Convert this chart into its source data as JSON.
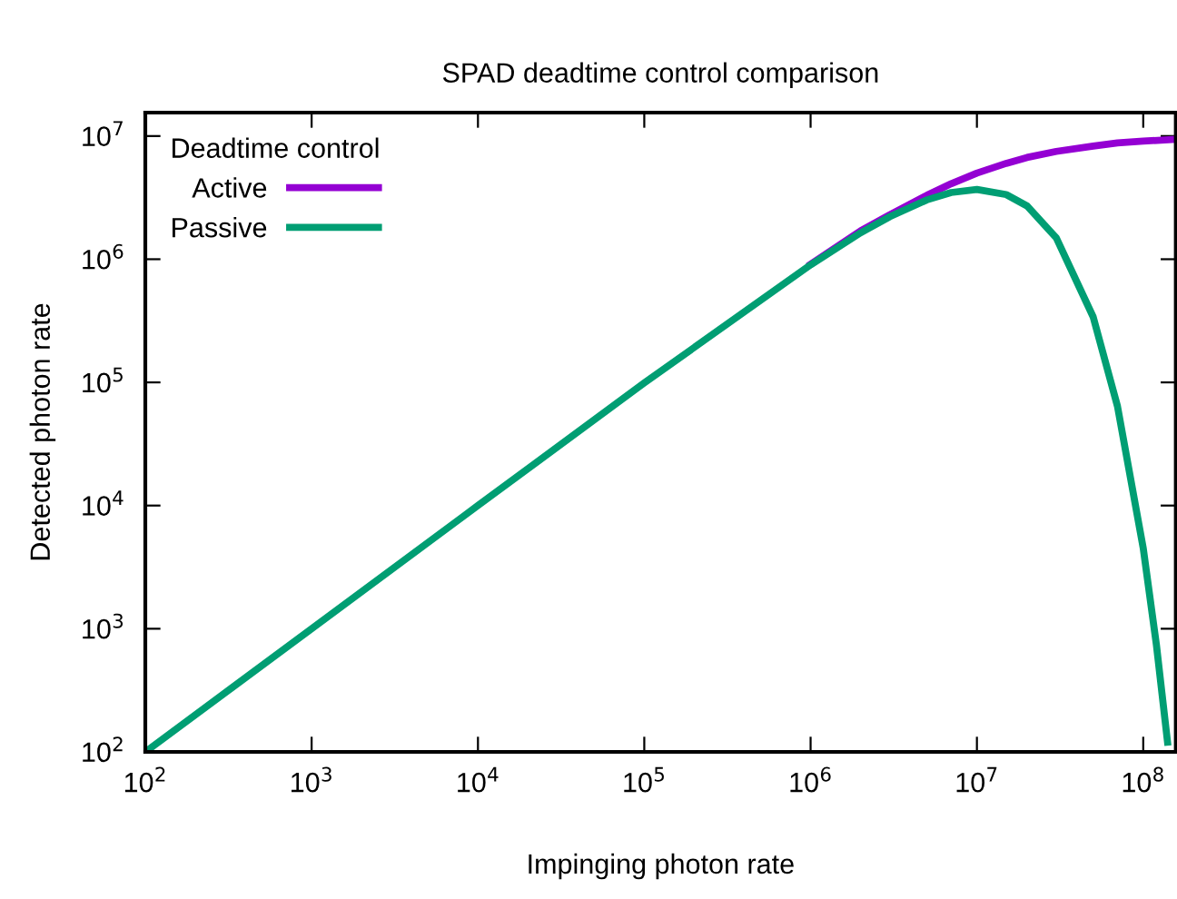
{
  "chart_data": {
    "type": "line",
    "title": "SPAD deadtime control comparison",
    "xlabel": "Impinging photon rate",
    "ylabel": "Detected photon rate",
    "legend_title": "Deadtime control",
    "legend": "top left",
    "log": "xy",
    "grid": false,
    "marker": "none",
    "line_style": "solid",
    "xlim": [
      100,
      157000000
    ],
    "ylim": [
      100,
      15500000
    ],
    "xticks": [
      {
        "value": 100,
        "label": "10$^{2}$"
      },
      {
        "value": 1000,
        "label": "10$^{3}$"
      },
      {
        "value": 10000,
        "label": "10$^{4}$"
      },
      {
        "value": 100000,
        "label": "10$^{5}$"
      },
      {
        "value": 1000000,
        "label": "10$^{6}$"
      },
      {
        "value": 10000000,
        "label": "10$^{7}$"
      },
      {
        "value": 100000000,
        "label": "10$^{8}$"
      }
    ],
    "yticks": [
      {
        "value": 100,
        "label": "10$^{2}$"
      },
      {
        "value": 1000,
        "label": "10$^{3}$"
      },
      {
        "value": 10000,
        "label": "10$^{4}$"
      },
      {
        "value": 100000,
        "label": "10$^{5}$"
      },
      {
        "value": 1000000,
        "label": "10$^{6}$"
      },
      {
        "value": 10000000,
        "label": "10$^{7}$"
      }
    ],
    "series": [
      {
        "name": "Active",
        "color": "#9400d3",
        "x": [
          1000000,
          2000000,
          3000000,
          5000000,
          7000000,
          10000000,
          15000000,
          20000000,
          30000000,
          50000000,
          70000000,
          100000000,
          157000000
        ],
        "values": [
          910000,
          1700000,
          2300000,
          3300000,
          4100000,
          5000000,
          6000000,
          6700000,
          7500000,
          8300000,
          8800000,
          9100000,
          9400000
        ]
      },
      {
        "name": "Passive",
        "color": "#009e73",
        "x": [
          100,
          1000,
          10000,
          100000,
          1000000,
          2000000,
          3000000,
          5000000,
          7000000,
          10000000,
          15000000,
          20000000,
          30000000,
          50000000,
          70000000,
          100000000,
          120000000,
          140000000
        ],
        "values": [
          100,
          1000,
          10000,
          99000,
          900000,
          1640000,
          2220000,
          3030000,
          3480000,
          3680000,
          3350000,
          2710000,
          1490000,
          340000,
          64000,
          4500,
          740,
          120
        ]
      }
    ]
  }
}
